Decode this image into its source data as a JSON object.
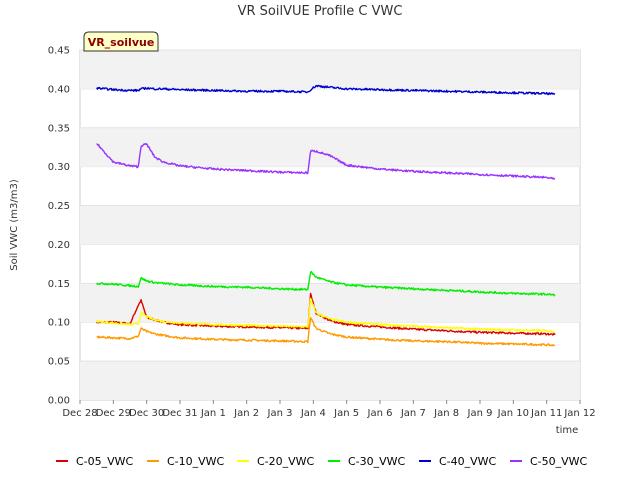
{
  "chart_data": {
    "type": "line",
    "title": "VR SoilVUE Profile C VWC",
    "badge": "VR_soilvue",
    "xlabel": "time",
    "ylabel": "Soil VWC (m3/m3)",
    "ylim": [
      0,
      0.45
    ],
    "yticks": [
      "0.00",
      "0.05",
      "0.10",
      "0.15",
      "0.20",
      "0.25",
      "0.30",
      "0.35",
      "0.40",
      "0.45"
    ],
    "xlim": [
      "Dec 28",
      "Jan 12"
    ],
    "xticks": [
      "Dec 28",
      "Dec 29",
      "Dec 30",
      "Dec 31",
      "Jan 1",
      "Jan 2",
      "Jan 3",
      "Jan 4",
      "Jan 5",
      "Jan 6",
      "Jan 7",
      "Jan 8",
      "Jan 9",
      "Jan 10",
      "Jan 11",
      "Jan 12"
    ],
    "x": [
      "Dec 28 12:00",
      "Dec 29 00:00",
      "Dec 29 12:00",
      "Dec 29 18:00",
      "Dec 29 20:00",
      "Dec 30 00:00",
      "Dec 30 06:00",
      "Dec 30 12:00",
      "Dec 31 00:00",
      "Jan 1 00:00",
      "Jan 2 00:00",
      "Jan 3 00:00",
      "Jan 3 20:00",
      "Jan 3 22:00",
      "Jan 4 02:00",
      "Jan 4 12:00",
      "Jan 5 00:00",
      "Jan 6 00:00",
      "Jan 7 00:00",
      "Jan 8 00:00",
      "Jan 9 00:00",
      "Jan 10 00:00",
      "Jan 11 00:00",
      "Jan 11 06:00"
    ],
    "grid": "horizontal bands",
    "legend_position": "bottom",
    "series": [
      {
        "name": "C-05_VWC",
        "color": "#dd0000",
        "values": [
          0.1,
          0.1,
          0.098,
          0.122,
          0.128,
          0.106,
          0.103,
          0.1,
          0.097,
          0.095,
          0.094,
          0.093,
          0.092,
          0.136,
          0.112,
          0.102,
          0.097,
          0.094,
          0.091,
          0.089,
          0.087,
          0.086,
          0.085,
          0.084
        ]
      },
      {
        "name": "C-10_VWC",
        "color": "#ff9900",
        "values": [
          0.081,
          0.08,
          0.079,
          0.082,
          0.092,
          0.088,
          0.085,
          0.083,
          0.08,
          0.078,
          0.077,
          0.076,
          0.075,
          0.106,
          0.092,
          0.085,
          0.081,
          0.078,
          0.076,
          0.075,
          0.073,
          0.072,
          0.071,
          0.07
        ]
      },
      {
        "name": "C-20_VWC",
        "color": "#ffff00",
        "values": [
          0.101,
          0.099,
          0.097,
          0.098,
          0.112,
          0.107,
          0.103,
          0.101,
          0.099,
          0.097,
          0.096,
          0.095,
          0.094,
          0.13,
          0.112,
          0.104,
          0.1,
          0.097,
          0.095,
          0.093,
          0.091,
          0.09,
          0.089,
          0.088
        ]
      },
      {
        "name": "C-30_VWC",
        "color": "#00ee00",
        "values": [
          0.15,
          0.149,
          0.147,
          0.146,
          0.157,
          0.153,
          0.151,
          0.15,
          0.148,
          0.146,
          0.145,
          0.143,
          0.142,
          0.165,
          0.158,
          0.152,
          0.148,
          0.145,
          0.143,
          0.141,
          0.139,
          0.137,
          0.136,
          0.135
        ]
      },
      {
        "name": "C-40_VWC",
        "color": "#0000cc",
        "values": [
          0.401,
          0.399,
          0.398,
          0.398,
          0.4,
          0.401,
          0.4,
          0.4,
          0.399,
          0.398,
          0.397,
          0.397,
          0.396,
          0.399,
          0.404,
          0.402,
          0.4,
          0.399,
          0.398,
          0.397,
          0.396,
          0.395,
          0.394,
          0.393
        ]
      },
      {
        "name": "C-50_VWC",
        "color": "#9933ff",
        "values": [
          0.33,
          0.306,
          0.301,
          0.3,
          0.327,
          0.329,
          0.312,
          0.306,
          0.301,
          0.297,
          0.295,
          0.293,
          0.292,
          0.32,
          0.32,
          0.314,
          0.302,
          0.297,
          0.294,
          0.292,
          0.29,
          0.288,
          0.286,
          0.284
        ]
      }
    ]
  }
}
